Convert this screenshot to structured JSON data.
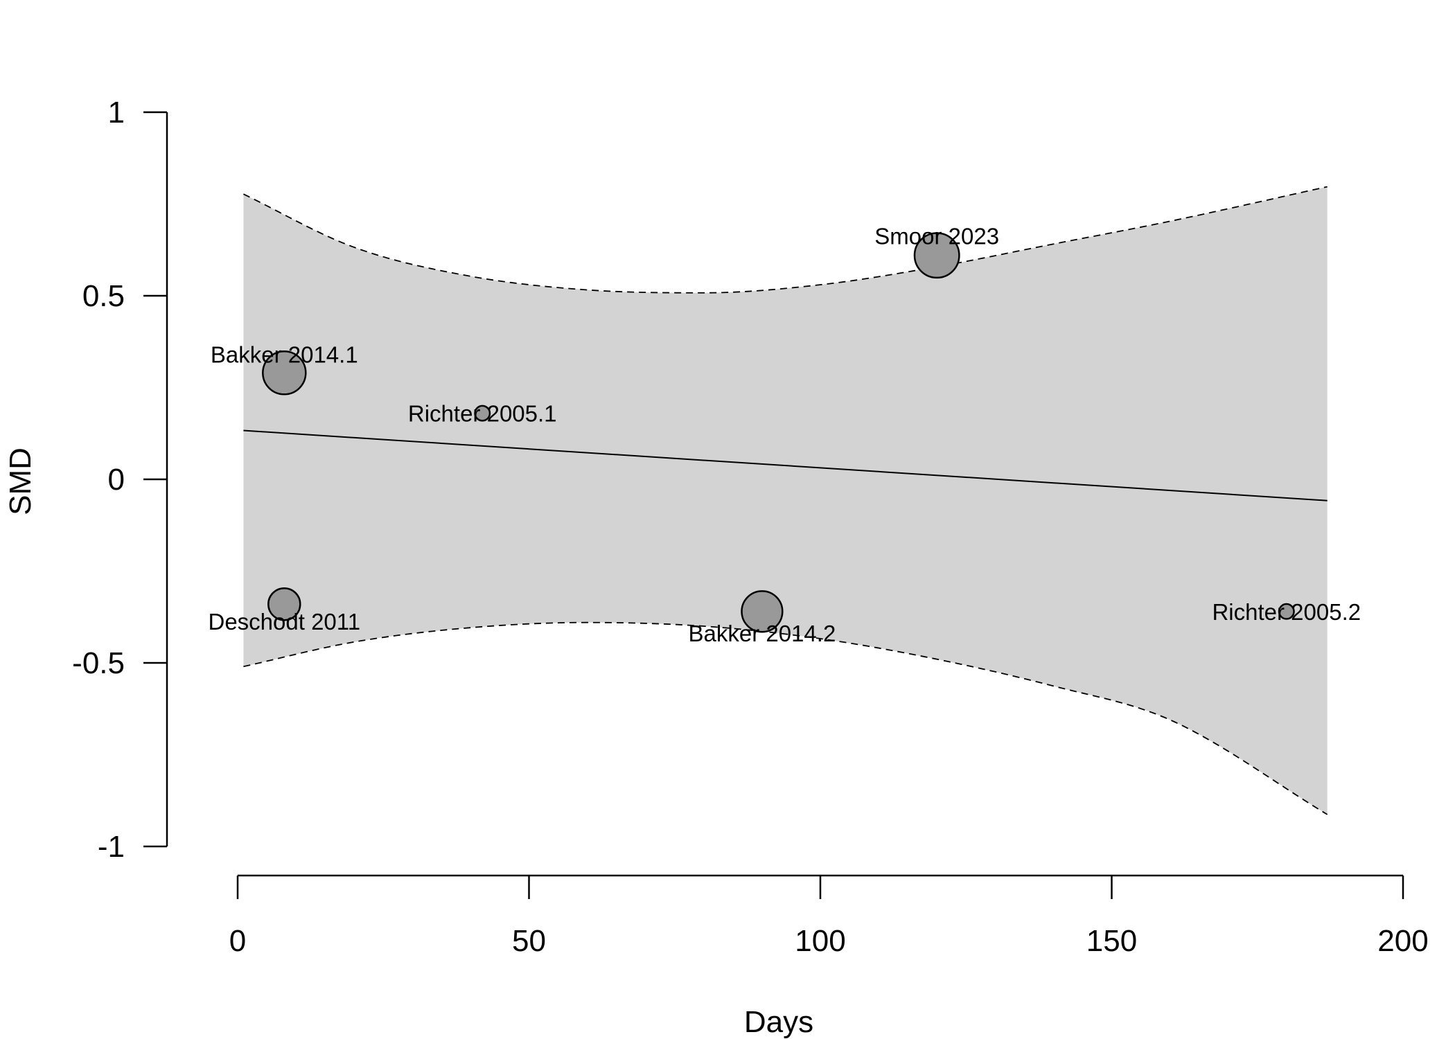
{
  "chart_data": {
    "type": "scatter",
    "xlabel": "Days",
    "ylabel": "SMD",
    "xlim": [
      0,
      200
    ],
    "ylim": [
      -1,
      1
    ],
    "x_ticks": [
      0,
      50,
      100,
      150,
      200
    ],
    "x_tick_labels": [
      "0",
      "50",
      "100",
      "150",
      "200"
    ],
    "y_ticks": [
      -1,
      -0.5,
      0,
      0.5,
      1
    ],
    "y_tick_labels": [
      "-1",
      "-0.5",
      "0",
      "0.5",
      "1"
    ],
    "grid": false,
    "points": [
      {
        "label": "Bakker 2014.1",
        "x": 8,
        "y": 0.29,
        "weight": 1.0,
        "label_pos": "above"
      },
      {
        "label": "Richter 2005.1",
        "x": 42,
        "y": 0.18,
        "weight": 0.12,
        "label_pos": "center"
      },
      {
        "label": "Smoor 2023",
        "x": 120,
        "y": 0.61,
        "weight": 1.08,
        "label_pos": "above"
      },
      {
        "label": "Deschodt 2011",
        "x": 8,
        "y": -0.34,
        "weight": 0.55,
        "label_pos": "below"
      },
      {
        "label": "Bakker 2014.2",
        "x": 90,
        "y": -0.36,
        "weight": 0.9,
        "label_pos": "below"
      },
      {
        "label": "Richter 2005.2",
        "x": 180,
        "y": -0.36,
        "weight": 0.12,
        "label_pos": "center"
      }
    ],
    "regression_line": {
      "x": [
        1,
        187
      ],
      "y": [
        0.133,
        -0.058
      ]
    },
    "confidence_band": {
      "x": [
        1,
        20,
        40,
        60,
        80,
        100,
        120,
        140,
        160,
        187
      ],
      "upper": [
        0.777,
        0.632,
        0.553,
        0.516,
        0.508,
        0.53,
        0.579,
        0.641,
        0.703,
        0.797
      ],
      "lower": [
        -0.51,
        -0.443,
        -0.404,
        -0.39,
        -0.4,
        -0.434,
        -0.49,
        -0.563,
        -0.655,
        -0.913
      ]
    },
    "colors": {
      "band_fill": "#d3d3d3",
      "point_fill": "#999999",
      "point_stroke": "#000000",
      "line": "#000000"
    }
  }
}
